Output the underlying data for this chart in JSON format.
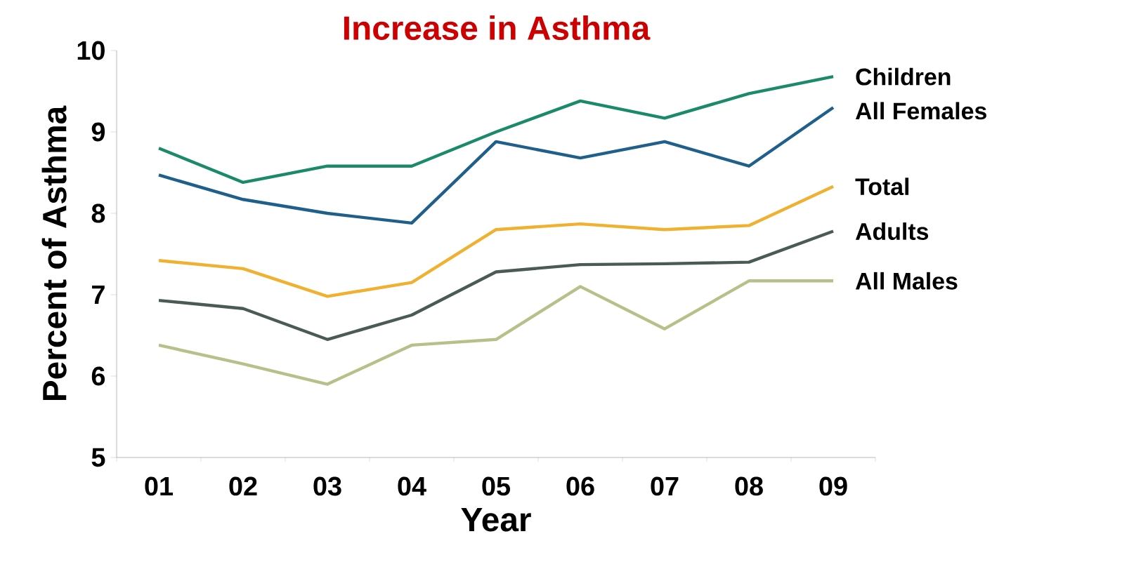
{
  "chart_data": {
    "type": "line",
    "title": "Increase in Asthma",
    "xlabel": "Year",
    "ylabel": "Percent of Asthma",
    "categories": [
      "01",
      "02",
      "03",
      "04",
      "05",
      "06",
      "07",
      "08",
      "09"
    ],
    "ylim": [
      5,
      10
    ],
    "yticks": [
      5,
      6,
      7,
      8,
      9,
      10
    ],
    "grid": false,
    "legend": false,
    "marker": "none",
    "line_style": "solid",
    "series": [
      {
        "name": "Children",
        "color": "#1a8a6a",
        "values": [
          8.8,
          8.38,
          8.58,
          8.58,
          9.0,
          9.38,
          9.17,
          9.47,
          9.68
        ]
      },
      {
        "name": "All Females",
        "color": "#1f5f8b",
        "values": [
          8.47,
          8.17,
          8.0,
          7.88,
          8.88,
          8.68,
          8.88,
          8.58,
          9.3
        ]
      },
      {
        "name": "Total",
        "color": "#f0b030",
        "values": [
          7.42,
          7.32,
          6.98,
          7.15,
          7.8,
          7.87,
          7.8,
          7.85,
          8.33
        ]
      },
      {
        "name": "Adults",
        "color": "#4a5a55",
        "values": [
          6.93,
          6.83,
          6.45,
          6.75,
          7.28,
          7.37,
          7.38,
          7.4,
          7.78
        ]
      },
      {
        "name": "All Males",
        "color": "#b8c08a",
        "values": [
          6.38,
          6.15,
          5.9,
          6.38,
          6.45,
          7.1,
          6.58,
          7.17,
          7.17
        ]
      }
    ]
  }
}
